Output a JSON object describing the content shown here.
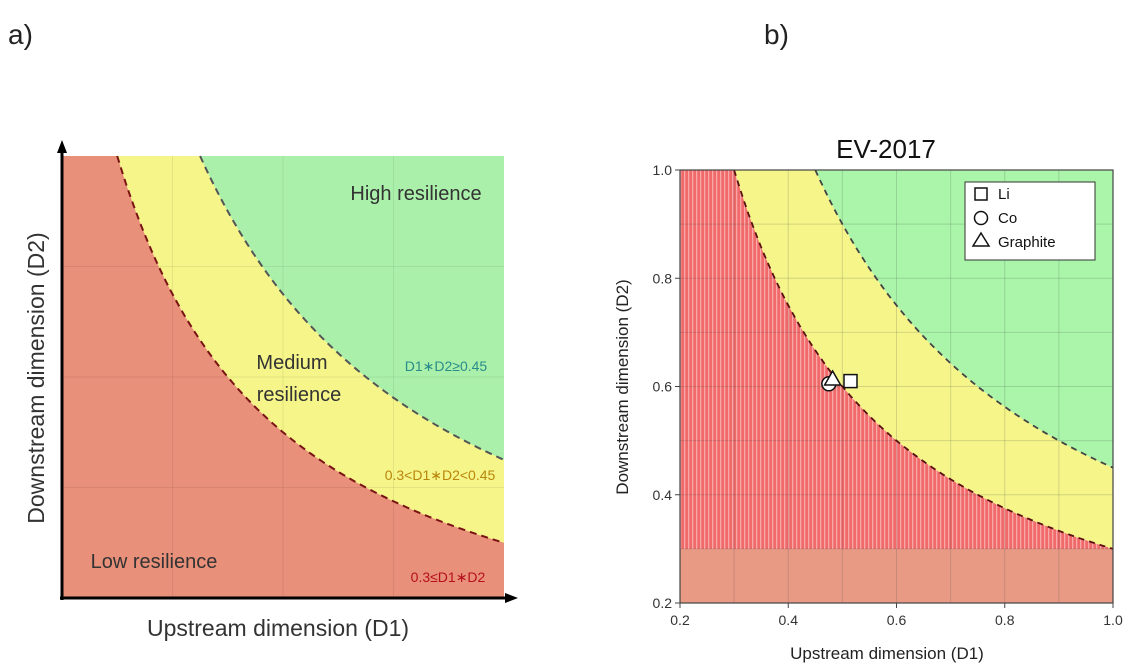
{
  "panel_a": {
    "label": "a)",
    "chart_data": {
      "type": "area",
      "xlabel": "Upstream dimension (D1)",
      "ylabel": "Downstream dimension (D2)",
      "regions": [
        {
          "name": "Low resilience",
          "color": "#e8907a"
        },
        {
          "name": "Medium resilience",
          "color": "#f5f58a"
        },
        {
          "name": "High resilience",
          "color": "#aaf0aa"
        }
      ],
      "boundaries": [
        {
          "label": "0.3≤D1∗D2",
          "product": 0.3,
          "color": "#b5101c"
        },
        {
          "label": "0.3<D1∗D2<0.45",
          "product": 0.45,
          "color": "#b8860b"
        },
        {
          "label": "D1∗D2≥0.45",
          "product": 0.45,
          "color": "#2a8b8b"
        }
      ],
      "region_labels": {
        "low": "Low resilience",
        "medium_line1": "Medium",
        "medium_line2": "resilience",
        "high": "High resilience"
      },
      "xlim": [
        0.2,
        1.0
      ],
      "ylim": [
        0.2,
        1.0
      ],
      "grid": true
    }
  },
  "panel_b": {
    "label": "b)",
    "chart_data": {
      "type": "scatter",
      "title": "EV-2017",
      "xlabel": "Upstream dimension (D1)",
      "ylabel": "Downstream dimension (D2)",
      "xlim": [
        0.2,
        1.0
      ],
      "ylim": [
        0.2,
        1.0
      ],
      "xticks": [
        "0.2",
        "0.4",
        "0.6",
        "0.8",
        "1.0"
      ],
      "yticks": [
        "0.2",
        "0.4",
        "0.6",
        "0.8",
        "1.0"
      ],
      "grid": true,
      "legend_position": "top-right",
      "boundaries": [
        0.3,
        0.45
      ],
      "region_colors": {
        "low": "#f07070",
        "medium": "#f5f58a",
        "high": "#aaf5aa",
        "low_band": "#e89a85"
      },
      "series": [
        {
          "name": "Li",
          "marker": "square",
          "x": 0.515,
          "y": 0.61
        },
        {
          "name": "Co",
          "marker": "circle",
          "x": 0.475,
          "y": 0.605
        },
        {
          "name": "Graphite",
          "marker": "triangle",
          "x": 0.482,
          "y": 0.612
        }
      ]
    }
  }
}
